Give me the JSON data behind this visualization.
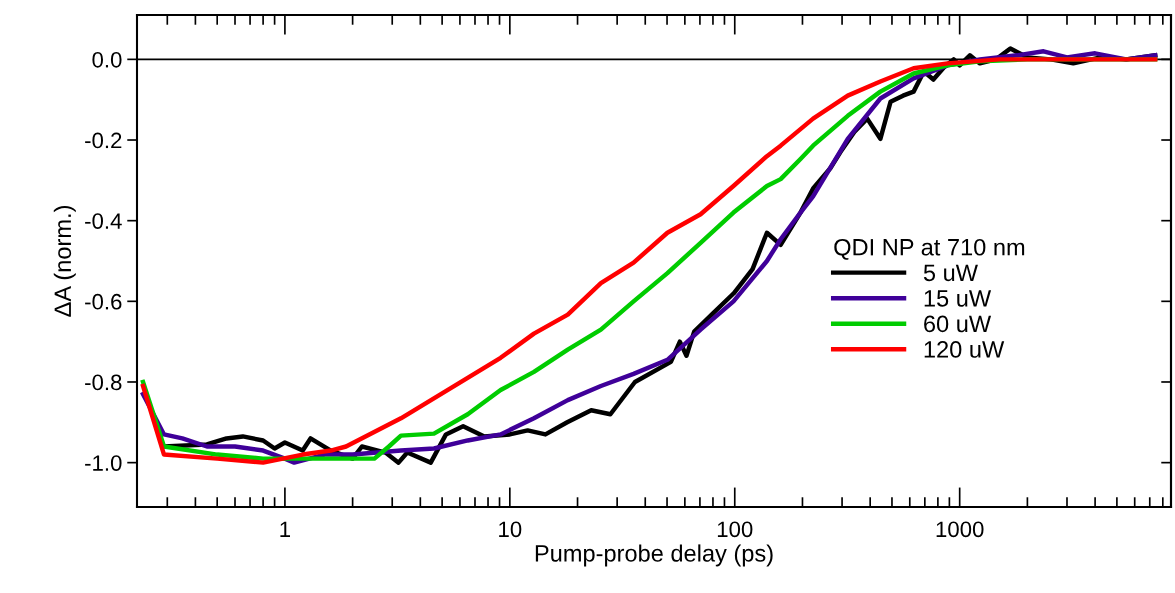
{
  "chart_data": {
    "type": "line",
    "xlabel": "Pump-probe delay (ps)",
    "ylabel": "ΔA (norm.)",
    "legend_title": "QDI NP at 710 nm",
    "legend": "right",
    "log": "x",
    "grid": false,
    "line_style": "solid",
    "marker": "none",
    "xlim": [
      0.22,
      8700
    ],
    "xticks": [
      1,
      10,
      100,
      1000
    ],
    "ylim": [
      -1.11,
      0.11
    ],
    "yticks": [
      {
        "value": 0,
        "label": "0.0"
      },
      {
        "value": -0.2,
        "label": "-0.2"
      },
      {
        "value": -0.4,
        "label": "-0.4"
      },
      {
        "value": -0.6,
        "label": "-0.6"
      },
      {
        "value": -0.8,
        "label": "-0.8"
      },
      {
        "value": -1,
        "label": "-1.0"
      }
    ],
    "ref_lines": [
      {
        "axis": "y",
        "value": 0,
        "color": "#000000"
      }
    ],
    "series": [
      {
        "name": "5 uW",
        "color": "#000000",
        "x": [
          0.29,
          0.45,
          0.55,
          0.65,
          0.8,
          0.9,
          1.0,
          1.2,
          1.3,
          1.6,
          2.0,
          2.2,
          2.8,
          3.2,
          3.5,
          4.45,
          5.2,
          6.2,
          7.7,
          10,
          12,
          14.4,
          18,
          23,
          28,
          36,
          52,
          57,
          61,
          66,
          80,
          99,
          120,
          139,
          160,
          196,
          223,
          266,
          295,
          340,
          388,
          444,
          493,
          560,
          624,
          693,
          764,
          850,
          940,
          1000,
          1110,
          1230,
          1450,
          1680,
          2000,
          2540,
          3200,
          4230,
          5500,
          7400
        ],
        "values": [
          -0.96,
          -0.955,
          -0.94,
          -0.935,
          -0.945,
          -0.965,
          -0.95,
          -0.97,
          -0.94,
          -0.97,
          -0.99,
          -0.96,
          -0.975,
          -1.0,
          -0.975,
          -1.0,
          -0.93,
          -0.91,
          -0.935,
          -0.93,
          -0.92,
          -0.93,
          -0.9,
          -0.87,
          -0.88,
          -0.8,
          -0.75,
          -0.7,
          -0.735,
          -0.675,
          -0.63,
          -0.58,
          -0.52,
          -0.43,
          -0.46,
          -0.38,
          -0.32,
          -0.27,
          -0.23,
          -0.18,
          -0.147,
          -0.197,
          -0.105,
          -0.09,
          -0.08,
          -0.03,
          -0.05,
          -0.02,
          0.0,
          -0.015,
          0.01,
          -0.01,
          0.0,
          0.027,
          0.005,
          0.0,
          -0.01,
          0.005,
          0.0,
          0.01
        ]
      },
      {
        "name": "15 uW",
        "color": "#3f0099",
        "x": [
          0.234,
          0.29,
          0.35,
          0.45,
          0.6,
          0.8,
          1.0,
          1.1,
          1.5,
          2.0,
          3.28,
          4.6,
          6.5,
          9.1,
          12.8,
          18.1,
          25.4,
          35.5,
          50.2,
          70.5,
          98.7,
          139,
          160,
          196,
          223,
          318,
          444,
          624,
          883,
          1230,
          1800,
          2360,
          3000,
          4000,
          5500,
          7400
        ],
        "values": [
          -0.83,
          -0.93,
          -0.94,
          -0.96,
          -0.96,
          -0.97,
          -0.99,
          -1.0,
          -0.98,
          -0.98,
          -0.97,
          -0.965,
          -0.945,
          -0.93,
          -0.89,
          -0.845,
          -0.81,
          -0.78,
          -0.745,
          -0.67,
          -0.6,
          -0.5,
          -0.446,
          -0.38,
          -0.34,
          -0.197,
          -0.097,
          -0.047,
          -0.015,
          0.0,
          0.01,
          0.02,
          0.005,
          0.015,
          0.0,
          0.01
        ]
      },
      {
        "name": "60 uW",
        "color": "#00cc00",
        "x": [
          0.234,
          0.29,
          0.5,
          0.8,
          1.0,
          2.5,
          2.9,
          3.28,
          4.6,
          6.5,
          9.1,
          12.8,
          18.1,
          25.4,
          35.5,
          50.2,
          70.5,
          98.7,
          139,
          160,
          196,
          223,
          318,
          444,
          624,
          883,
          1230,
          2000,
          4000,
          7400
        ],
        "values": [
          -0.8,
          -0.96,
          -0.98,
          -0.99,
          -0.99,
          -0.99,
          -0.96,
          -0.933,
          -0.928,
          -0.88,
          -0.82,
          -0.775,
          -0.72,
          -0.67,
          -0.6,
          -0.53,
          -0.455,
          -0.38,
          -0.314,
          -0.297,
          -0.247,
          -0.214,
          -0.14,
          -0.08,
          -0.035,
          -0.015,
          -0.005,
          0.0,
          0.0,
          0.0
        ]
      },
      {
        "name": "120 uW",
        "color": "#ff0000",
        "x": [
          0.234,
          0.29,
          0.5,
          0.8,
          1.2,
          1.6,
          1.87,
          3.28,
          9.1,
          12.8,
          18.1,
          25.4,
          35.5,
          50.2,
          70.5,
          98.7,
          139,
          160,
          223,
          318,
          444,
          624,
          883,
          1500,
          3000,
          7400
        ],
        "values": [
          -0.81,
          -0.98,
          -0.99,
          -1.0,
          -0.98,
          -0.97,
          -0.96,
          -0.89,
          -0.74,
          -0.68,
          -0.633,
          -0.555,
          -0.504,
          -0.43,
          -0.384,
          -0.314,
          -0.24,
          -0.214,
          -0.147,
          -0.09,
          -0.055,
          -0.022,
          -0.01,
          0.0,
          0.0,
          0.0
        ]
      }
    ]
  }
}
